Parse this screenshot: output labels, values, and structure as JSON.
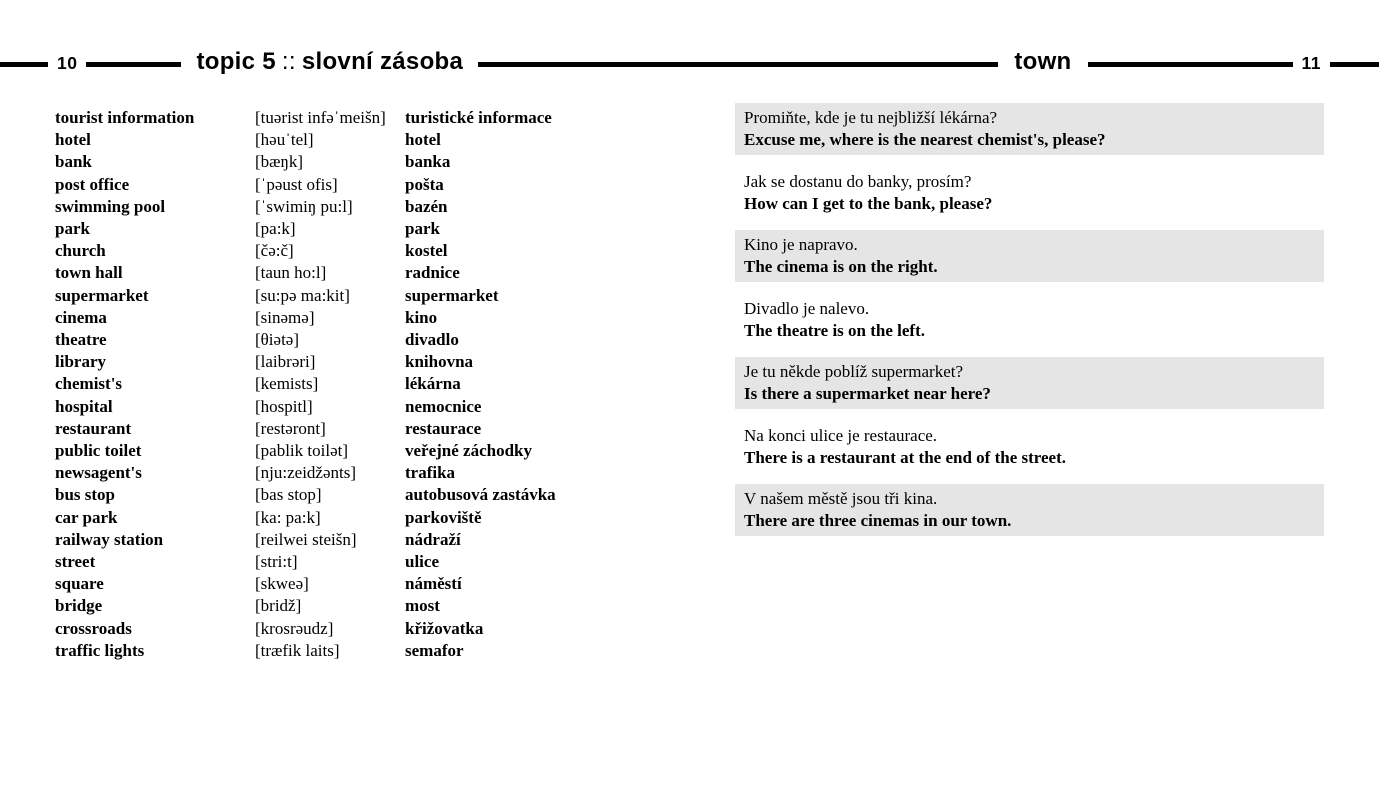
{
  "header": {
    "left_page_number": "10",
    "topic_label": "topic 5",
    "topic_separator": "::",
    "topic_name": "slovní zásoba",
    "section_title": "town",
    "right_page_number": "11"
  },
  "vocabulary": [
    {
      "en": "tourist information",
      "ph": "[tuərist infəˈmeišn]",
      "cz": "turistické informace"
    },
    {
      "en": "hotel",
      "ph": "[həuˈtel]",
      "cz": "hotel"
    },
    {
      "en": "bank",
      "ph": "[bæŋk]",
      "cz": "banka"
    },
    {
      "en": "post office",
      "ph": "[ˈpəust ofis]",
      "cz": "pošta"
    },
    {
      "en": "swimming pool",
      "ph": "[ˈswimiŋ pu:l]",
      "cz": "bazén"
    },
    {
      "en": "park",
      "ph": "[pa:k]",
      "cz": "park"
    },
    {
      "en": "church",
      "ph": "[čə:č]",
      "cz": "kostel"
    },
    {
      "en": "town hall",
      "ph": "[taun ho:l]",
      "cz": "radnice"
    },
    {
      "en": "supermarket",
      "ph": "[su:pə ma:kit]",
      "cz": "supermarket"
    },
    {
      "en": "cinema",
      "ph": "[sinəmə]",
      "cz": "kino"
    },
    {
      "en": "theatre",
      "ph": "[θiətə]",
      "cz": "divadlo"
    },
    {
      "en": "library",
      "ph": "[laibrəri]",
      "cz": "knihovna"
    },
    {
      "en": "chemist's",
      "ph": "[kemists]",
      "cz": "lékárna"
    },
    {
      "en": "hospital",
      "ph": "[hospitl]",
      "cz": "nemocnice"
    },
    {
      "en": "restaurant",
      "ph": "[restəront]",
      "cz": "restaurace"
    },
    {
      "en": "public toilet",
      "ph": "[pablik toilət]",
      "cz": "veřejné záchodky"
    },
    {
      "en": "newsagent's",
      "ph": "[nju:zeidžənts]",
      "cz": "trafika"
    },
    {
      "en": "bus stop",
      "ph": "[bas stop]",
      "cz": "autobusová zastávka"
    },
    {
      "en": "car park",
      "ph": "[ka: pa:k]",
      "cz": "parkoviště"
    },
    {
      "en": "railway station",
      "ph": "[reilwei steišn]",
      "cz": "nádraží"
    },
    {
      "en": "street",
      "ph": "[stri:t]",
      "cz": "ulice"
    },
    {
      "en": "square",
      "ph": "[skweə]",
      "cz": "náměstí"
    },
    {
      "en": "bridge",
      "ph": "[bridž]",
      "cz": "most"
    },
    {
      "en": "crossroads",
      "ph": "[krosrəudz]",
      "cz": "křižovatka"
    },
    {
      "en": "traffic lights",
      "ph": "[træfik laits]",
      "cz": "semafor"
    }
  ],
  "phrases": [
    {
      "cz": "Promiňte, kde je tu nejbližší lékárna?",
      "en": "Excuse me, where is the nearest chemist's, please?",
      "highlighted": true
    },
    {
      "cz": "Jak se dostanu do banky, prosím?",
      "en": "How can I get to the bank, please?",
      "highlighted": false
    },
    {
      "cz": "Kino je napravo.",
      "en": "The cinema is on the right.",
      "highlighted": true
    },
    {
      "cz": "Divadlo je nalevo.",
      "en": "The theatre is on the left.",
      "highlighted": false
    },
    {
      "cz": "Je tu někde poblíž supermarket?",
      "en": "Is there a supermarket near here?",
      "highlighted": true
    },
    {
      "cz": "Na konci ulice je restaurace.",
      "en": "There is a restaurant at the end of the street.",
      "highlighted": false
    },
    {
      "cz": "V našem městě jsou tři kina.",
      "en": "There are three cinemas in our town.",
      "highlighted": true
    }
  ],
  "colors": {
    "highlight_background": "#e5e5e5",
    "rule_color": "#000000",
    "text_color": "#000000"
  }
}
